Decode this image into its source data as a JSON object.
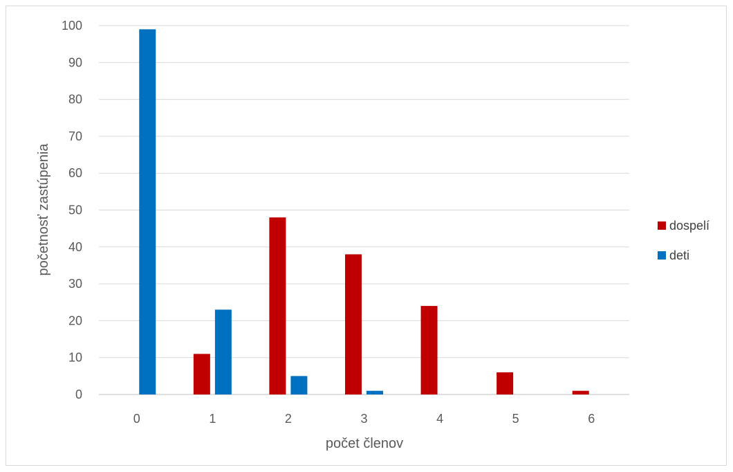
{
  "chart_data": {
    "type": "bar",
    "title": "",
    "xlabel": "počet členov",
    "ylabel": "početnosť zastúpenia",
    "categories": [
      "0",
      "1",
      "2",
      "3",
      "4",
      "5",
      "6"
    ],
    "series": [
      {
        "name": "dospelí",
        "color": "#c00000",
        "values": [
          0,
          11,
          48,
          38,
          24,
          6,
          1
        ]
      },
      {
        "name": "deti",
        "color": "#0070c0",
        "values": [
          99,
          23,
          5,
          1,
          0,
          0,
          0
        ]
      }
    ],
    "ylim": [
      0,
      100
    ],
    "yticks": [
      0,
      10,
      20,
      30,
      40,
      50,
      60,
      70,
      80,
      90,
      100
    ],
    "grid": true,
    "legend_position": "right"
  }
}
